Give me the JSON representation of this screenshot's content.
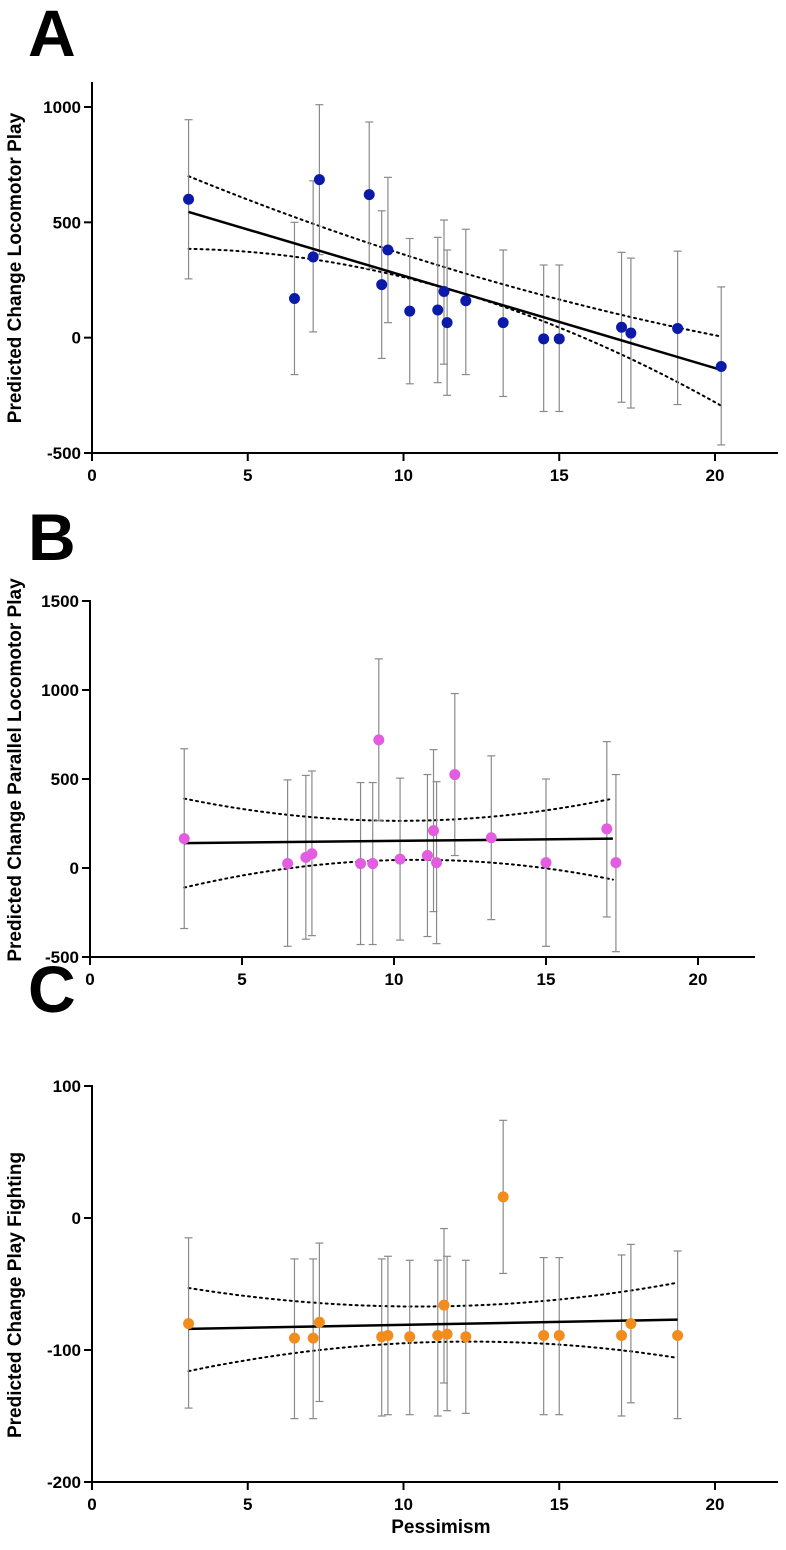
{
  "colors": {
    "A": "#0b1aa8",
    "B": "#e25ddf",
    "C": "#f28c1d",
    "axis": "#000000",
    "errorbar": "#8a8a8a"
  },
  "chart_data": [
    {
      "panel": "A",
      "type": "scatter",
      "title": "",
      "xlabel": "",
      "ylabel": "Predicted Change Locomotor Play",
      "xlim": [
        0,
        22
      ],
      "ylim": [
        -500,
        1150
      ],
      "xticks": [
        0,
        5,
        10,
        15,
        20
      ],
      "yticks": [
        -500,
        0,
        500,
        1000
      ],
      "regression": {
        "x": [
          3.1,
          20.2
        ],
        "y": [
          545,
          -140
        ]
      },
      "ci_upper": [
        [
          3.1,
          700
        ],
        [
          11.5,
          295
        ],
        [
          20.2,
          5
        ]
      ],
      "ci_lower": [
        [
          3.1,
          385
        ],
        [
          11.5,
          205
        ],
        [
          20.2,
          -295
        ]
      ],
      "points": [
        {
          "x": 3.1,
          "y": 600,
          "lo": 255,
          "hi": 945
        },
        {
          "x": 6.5,
          "y": 170,
          "lo": -160,
          "hi": 500
        },
        {
          "x": 7.1,
          "y": 350,
          "lo": 25,
          "hi": 680
        },
        {
          "x": 7.3,
          "y": 685,
          "lo": 360,
          "hi": 1010
        },
        {
          "x": 8.9,
          "y": 620,
          "lo": 300,
          "hi": 935
        },
        {
          "x": 9.3,
          "y": 230,
          "lo": -90,
          "hi": 550
        },
        {
          "x": 9.5,
          "y": 380,
          "lo": 65,
          "hi": 695
        },
        {
          "x": 10.2,
          "y": 115,
          "lo": -200,
          "hi": 430
        },
        {
          "x": 11.1,
          "y": 120,
          "lo": -195,
          "hi": 435
        },
        {
          "x": 11.3,
          "y": 200,
          "lo": -115,
          "hi": 510
        },
        {
          "x": 11.4,
          "y": 65,
          "lo": -250,
          "hi": 380
        },
        {
          "x": 12.0,
          "y": 160,
          "lo": -160,
          "hi": 470
        },
        {
          "x": 13.2,
          "y": 65,
          "lo": -255,
          "hi": 380
        },
        {
          "x": 14.5,
          "y": -5,
          "lo": -320,
          "hi": 315
        },
        {
          "x": 15.0,
          "y": -5,
          "lo": -320,
          "hi": 315
        },
        {
          "x": 17.0,
          "y": 45,
          "lo": -280,
          "hi": 370
        },
        {
          "x": 17.3,
          "y": 20,
          "lo": -305,
          "hi": 345
        },
        {
          "x": 18.8,
          "y": 40,
          "lo": -290,
          "hi": 375
        },
        {
          "x": 20.2,
          "y": -125,
          "lo": -465,
          "hi": 220
        }
      ]
    },
    {
      "panel": "B",
      "type": "scatter",
      "title": "",
      "xlabel": "",
      "ylabel": "Predicted Change Parallel Locomotor Play",
      "xlim": [
        0,
        22
      ],
      "ylim": [
        -500,
        1500
      ],
      "xticks": [
        0,
        5,
        10,
        15,
        20
      ],
      "yticks": [
        -500,
        0,
        500,
        1000,
        1500
      ],
      "regression": {
        "x": [
          3.1,
          17.2
        ],
        "y": [
          140,
          165
        ]
      },
      "ci_upper": [
        [
          3.1,
          390
        ],
        [
          10.2,
          265
        ],
        [
          17.2,
          390
        ]
      ],
      "ci_lower": [
        [
          3.1,
          -110
        ],
        [
          10.2,
          45
        ],
        [
          17.2,
          -65
        ]
      ],
      "points": [
        {
          "x": 3.1,
          "y": 165,
          "lo": -340,
          "hi": 670
        },
        {
          "x": 6.5,
          "y": 25,
          "lo": -440,
          "hi": 495
        },
        {
          "x": 7.1,
          "y": 60,
          "lo": -400,
          "hi": 520
        },
        {
          "x": 7.3,
          "y": 80,
          "lo": -380,
          "hi": 545
        },
        {
          "x": 8.9,
          "y": 25,
          "lo": -430,
          "hi": 480
        },
        {
          "x": 9.3,
          "y": 25,
          "lo": -430,
          "hi": 480
        },
        {
          "x": 9.5,
          "y": 720,
          "lo": 265,
          "hi": 1175
        },
        {
          "x": 10.2,
          "y": 50,
          "lo": -405,
          "hi": 505
        },
        {
          "x": 11.1,
          "y": 70,
          "lo": -385,
          "hi": 525
        },
        {
          "x": 11.3,
          "y": 210,
          "lo": -245,
          "hi": 665
        },
        {
          "x": 11.4,
          "y": 30,
          "lo": -425,
          "hi": 485
        },
        {
          "x": 12.0,
          "y": 525,
          "lo": 70,
          "hi": 980
        },
        {
          "x": 13.2,
          "y": 170,
          "lo": -290,
          "hi": 630
        },
        {
          "x": 15.0,
          "y": 30,
          "lo": -440,
          "hi": 500
        },
        {
          "x": 17.0,
          "y": 220,
          "lo": -275,
          "hi": 710
        },
        {
          "x": 17.3,
          "y": 30,
          "lo": -470,
          "hi": 525
        }
      ]
    },
    {
      "panel": "C",
      "type": "scatter",
      "title": "",
      "xlabel": "Pessimism",
      "ylabel": "Predicted Change Play Fighting",
      "xlim": [
        0,
        22
      ],
      "ylim": [
        -200,
        100
      ],
      "xticks": [
        0,
        5,
        10,
        15,
        20
      ],
      "yticks": [
        -200,
        -100,
        0,
        100
      ],
      "regression": {
        "x": [
          3.1,
          18.8
        ],
        "y": [
          -84,
          -77
        ]
      },
      "ci_upper": [
        [
          3.1,
          -53
        ],
        [
          11.0,
          -67
        ],
        [
          18.8,
          -49
        ]
      ],
      "ci_lower": [
        [
          3.1,
          -116
        ],
        [
          11.0,
          -94
        ],
        [
          18.8,
          -106
        ]
      ],
      "points": [
        {
          "x": 3.1,
          "y": -80,
          "lo": -144,
          "hi": -15
        },
        {
          "x": 6.5,
          "y": -91,
          "lo": -152,
          "hi": -31
        },
        {
          "x": 7.1,
          "y": -91,
          "lo": -152,
          "hi": -31
        },
        {
          "x": 7.3,
          "y": -79,
          "lo": -139,
          "hi": -19
        },
        {
          "x": 9.3,
          "y": -90,
          "lo": -150,
          "hi": -31
        },
        {
          "x": 9.5,
          "y": -89,
          "lo": -149,
          "hi": -29
        },
        {
          "x": 10.2,
          "y": -90,
          "lo": -149,
          "hi": -32
        },
        {
          "x": 11.1,
          "y": -89,
          "lo": -150,
          "hi": -32
        },
        {
          "x": 11.3,
          "y": -66,
          "lo": -125,
          "hi": -8
        },
        {
          "x": 11.4,
          "y": -88,
          "lo": -146,
          "hi": -29
        },
        {
          "x": 12.0,
          "y": -90,
          "lo": -148,
          "hi": -32
        },
        {
          "x": 13.2,
          "y": 16,
          "lo": -42,
          "hi": 74
        },
        {
          "x": 14.5,
          "y": -89,
          "lo": -149,
          "hi": -30
        },
        {
          "x": 15.0,
          "y": -89,
          "lo": -149,
          "hi": -30
        },
        {
          "x": 17.0,
          "y": -89,
          "lo": -150,
          "hi": -28
        },
        {
          "x": 17.3,
          "y": -80,
          "lo": -140,
          "hi": -20
        },
        {
          "x": 18.8,
          "y": -89,
          "lo": -152,
          "hi": -25
        }
      ]
    }
  ]
}
